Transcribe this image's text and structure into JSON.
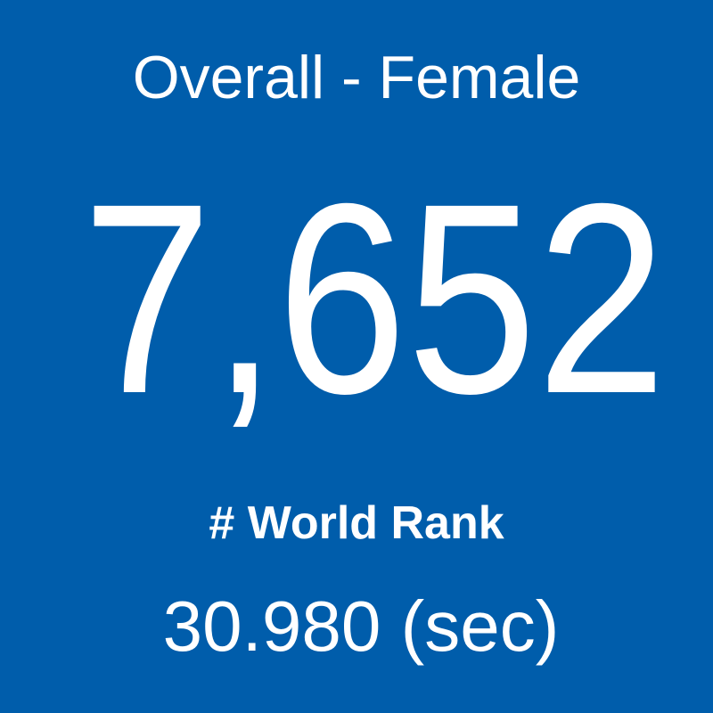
{
  "tile": {
    "title": "Overall - Female",
    "rank": "7,652",
    "rank_label": "# World Rank",
    "time": "30.980 (sec)"
  }
}
